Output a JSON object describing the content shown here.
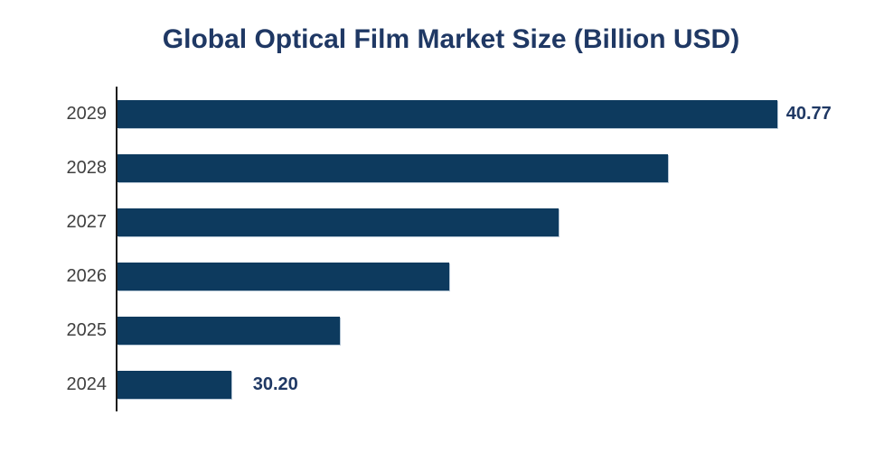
{
  "page": {
    "background": "#ffffff"
  },
  "chart_data": {
    "type": "bar",
    "orientation": "horizontal",
    "title": "Global Optical Film Market Size (Billion USD)",
    "categories": [
      "2029",
      "2028",
      "2027",
      "2026",
      "2025",
      "2024"
    ],
    "values": [
      40.77,
      38.66,
      36.54,
      34.43,
      32.31,
      30.2
    ],
    "data_labels": [
      "40.77",
      "",
      "",
      "",
      "",
      "30.20"
    ],
    "xlim": [
      28,
      42
    ],
    "grid": false,
    "legend": "none",
    "colors": {
      "bar": "#0d3a5e",
      "bar_edge": "#b7c7d6",
      "title": "#1f3864",
      "data_label": "#1f3864",
      "category_label": "#404040",
      "axis_line": "#1a1a1a",
      "background": "#ffffff"
    }
  }
}
